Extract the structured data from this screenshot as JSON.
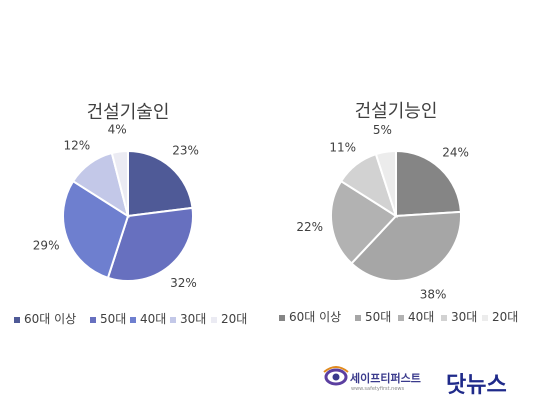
{
  "chart_data": [
    {
      "type": "pie",
      "title": "건설기술인",
      "categories": [
        "60대 이상",
        "50대",
        "40대",
        "30대",
        "20대"
      ],
      "values": [
        23,
        32,
        29,
        12,
        4
      ],
      "labels": [
        "23%",
        "32%",
        "29%",
        "12%",
        "4%"
      ],
      "colors": [
        "#4f5a97",
        "#6770bf",
        "#6e7fcf",
        "#c3c8e8",
        "#ebebf3"
      ],
      "legend": "bottom"
    },
    {
      "type": "pie",
      "title": "건설기능인",
      "categories": [
        "60대 이상",
        "50대",
        "40대",
        "30대",
        "20대"
      ],
      "values": [
        24,
        38,
        22,
        11,
        5
      ],
      "labels": [
        "24%",
        "38%",
        "22%",
        "11%",
        "5%"
      ],
      "colors": [
        "#858585",
        "#a6a6a6",
        "#b2b2b2",
        "#d2d2d2",
        "#ececec"
      ],
      "legend": "bottom"
    }
  ],
  "logo": {
    "name": "세이프티퍼스트",
    "tagline": "www.safetyfirst.news",
    "brand": "닷뉴스"
  }
}
